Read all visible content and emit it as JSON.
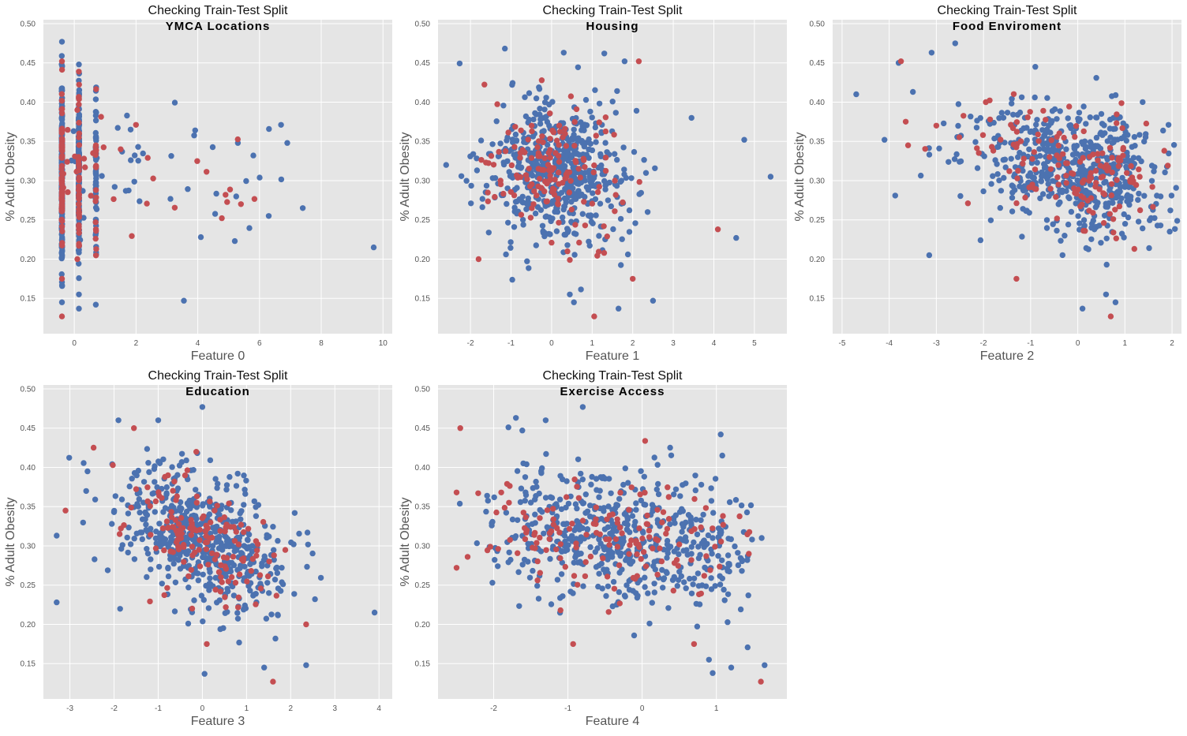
{
  "colors": {
    "train": "#4c72b0",
    "test": "#c44e52",
    "panel_bg": "#e5e5e5",
    "grid": "#ffffff"
  },
  "chart_data": [
    {
      "type": "scatter",
      "title": "Checking Train-Test Split",
      "subtitle": "YMCA Locations",
      "xlabel": "Feature 0",
      "ylabel": "% Adult Obesity",
      "xlim": [
        -1.0,
        10.3
      ],
      "ylim": [
        0.105,
        0.505
      ],
      "xticks": [
        0,
        2,
        4,
        6,
        8,
        10
      ],
      "yticks": [
        0.15,
        0.2,
        0.25,
        0.3,
        0.35,
        0.4,
        0.45,
        0.5
      ],
      "series": [
        {
          "name": "train",
          "color": "#4c72b0",
          "count": 520,
          "x_mode": "discrete",
          "x_levels": [
            -0.4,
            0.15,
            0.7
          ],
          "x_level_weights": [
            0.5,
            0.37,
            0.13
          ],
          "x_tail": [
            -0.4,
            7.0
          ],
          "tail_frac": 0.09,
          "y_mean": 0.305,
          "y_sd": 0.055,
          "extra_points": [
            [
              9.7,
              0.215
            ],
            [
              7.4,
              0.265
            ],
            [
              6.9,
              0.348
            ],
            [
              6.3,
              0.255
            ],
            [
              5.8,
              0.332
            ],
            [
              5.2,
              0.223
            ],
            [
              4.1,
              0.228
            ],
            [
              3.55,
              0.147
            ],
            [
              -0.4,
              0.477
            ],
            [
              0.15,
              0.448
            ],
            [
              -0.4,
              0.145
            ],
            [
              0.15,
              0.137
            ],
            [
              0.15,
              0.155
            ]
          ]
        },
        {
          "name": "test",
          "color": "#c44e52",
          "count": 165,
          "x_mode": "discrete",
          "x_levels": [
            -0.4,
            0.15,
            0.7
          ],
          "x_level_weights": [
            0.56,
            0.34,
            0.1
          ],
          "x_tail": [
            -0.4,
            6.0
          ],
          "tail_frac": 0.12,
          "y_mean": 0.305,
          "y_sd": 0.055,
          "extra_points": [
            [
              -0.4,
              0.452
            ],
            [
              -0.4,
              0.175
            ],
            [
              -0.4,
              0.127
            ],
            [
              0.1,
              0.39
            ],
            [
              0.1,
              0.2
            ],
            [
              2.0,
              0.371
            ],
            [
              5.4,
              0.27
            ],
            [
              4.9,
              0.282
            ]
          ]
        }
      ]
    },
    {
      "type": "scatter",
      "title": "Checking Train-Test Split",
      "subtitle": "Housing",
      "xlabel": "Feature 1",
      "ylabel": "% Adult Obesity",
      "xlim": [
        -2.8,
        5.8
      ],
      "ylim": [
        0.105,
        0.505
      ],
      "xticks": [
        -2,
        -1,
        0,
        1,
        2,
        3,
        4,
        5
      ],
      "yticks": [
        0.15,
        0.2,
        0.25,
        0.3,
        0.35,
        0.4,
        0.45,
        0.5
      ],
      "series": [
        {
          "name": "train",
          "color": "#4c72b0",
          "count": 560,
          "x_mode": "normal",
          "x_mean": 0.1,
          "x_sd": 0.85,
          "y_mean": 0.31,
          "y_sd": 0.046,
          "corr": -0.15,
          "extra_points": [
            [
              5.4,
              0.305
            ],
            [
              4.75,
              0.352
            ],
            [
              4.55,
              0.227
            ],
            [
              3.45,
              0.38
            ],
            [
              2.5,
              0.147
            ],
            [
              1.8,
              0.452
            ],
            [
              0.45,
              0.155
            ],
            [
              0.55,
              0.145
            ],
            [
              1.65,
              0.137
            ],
            [
              -2.6,
              0.32
            ],
            [
              0.3,
              0.463
            ],
            [
              1.3,
              0.462
            ]
          ]
        },
        {
          "name": "test",
          "color": "#c44e52",
          "count": 150,
          "x_mode": "normal",
          "x_mean": 0.0,
          "x_sd": 0.75,
          "y_mean": 0.31,
          "y_sd": 0.042,
          "corr": -0.15,
          "extra_points": [
            [
              2.15,
              0.452
            ],
            [
              1.05,
              0.127
            ],
            [
              2.0,
              0.175
            ],
            [
              -1.8,
              0.2
            ],
            [
              4.1,
              0.238
            ]
          ]
        }
      ]
    },
    {
      "type": "scatter",
      "title": "Checking Train-Test Split",
      "subtitle": "Food Enviroment",
      "xlabel": "Feature 2",
      "ylabel": "% Adult Obesity",
      "xlim": [
        -5.2,
        2.2
      ],
      "ylim": [
        0.105,
        0.505
      ],
      "xticks": [
        -5,
        -4,
        -3,
        -2,
        -1,
        0,
        1,
        2
      ],
      "yticks": [
        0.15,
        0.2,
        0.25,
        0.3,
        0.35,
        0.4,
        0.45,
        0.5
      ],
      "series": [
        {
          "name": "train",
          "color": "#4c72b0",
          "count": 560,
          "x_mode": "skew_left",
          "x_mean": 0.05,
          "x_sd": 0.9,
          "y_mean": 0.31,
          "y_sd": 0.046,
          "corr": -0.3,
          "extra_points": [
            [
              -4.7,
              0.41
            ],
            [
              -4.1,
              0.352
            ],
            [
              -3.8,
              0.45
            ],
            [
              -3.1,
              0.463
            ],
            [
              -2.6,
              0.475
            ],
            [
              -3.15,
              0.205
            ],
            [
              -0.9,
              0.445
            ],
            [
              0.6,
              0.155
            ],
            [
              0.8,
              0.145
            ],
            [
              0.1,
              0.137
            ],
            [
              1.95,
              0.235
            ]
          ]
        },
        {
          "name": "test",
          "color": "#c44e52",
          "count": 150,
          "x_mode": "skew_left",
          "x_mean": 0.1,
          "x_sd": 0.85,
          "y_mean": 0.31,
          "y_sd": 0.042,
          "corr": -0.3,
          "extra_points": [
            [
              -3.75,
              0.452
            ],
            [
              -3.65,
              0.375
            ],
            [
              -3.6,
              0.345
            ],
            [
              -3.0,
              0.37
            ],
            [
              -1.3,
              0.175
            ],
            [
              0.7,
              0.127
            ],
            [
              -1.95,
              0.4
            ]
          ]
        }
      ]
    },
    {
      "type": "scatter",
      "title": "Checking Train-Test Split",
      "subtitle": "Education",
      "xlabel": "Feature 3",
      "ylabel": "% Adult Obesity",
      "xlim": [
        -3.6,
        4.3
      ],
      "ylim": [
        0.105,
        0.505
      ],
      "xticks": [
        -3,
        -2,
        -1,
        0,
        1,
        2,
        3,
        4
      ],
      "yticks": [
        0.15,
        0.2,
        0.25,
        0.3,
        0.35,
        0.4,
        0.45,
        0.5
      ],
      "series": [
        {
          "name": "train",
          "color": "#4c72b0",
          "count": 560,
          "x_mode": "normal",
          "x_mean": 0.05,
          "x_sd": 0.95,
          "y_mean": 0.31,
          "y_sd": 0.046,
          "corr": -0.45,
          "extra_points": [
            [
              -3.3,
              0.313
            ],
            [
              -3.3,
              0.228
            ],
            [
              3.9,
              0.215
            ],
            [
              -2.6,
              0.395
            ],
            [
              0.0,
              0.477
            ],
            [
              0.05,
              0.137
            ],
            [
              1.4,
              0.145
            ],
            [
              2.35,
              0.148
            ],
            [
              -1.0,
              0.46
            ],
            [
              -1.9,
              0.46
            ],
            [
              2.55,
              0.232
            ]
          ]
        },
        {
          "name": "test",
          "color": "#c44e52",
          "count": 150,
          "x_mode": "normal",
          "x_mean": 0.0,
          "x_sd": 0.85,
          "y_mean": 0.31,
          "y_sd": 0.042,
          "corr": -0.45,
          "extra_points": [
            [
              -3.1,
              0.345
            ],
            [
              -1.55,
              0.45
            ],
            [
              1.6,
              0.127
            ],
            [
              0.1,
              0.175
            ],
            [
              2.35,
              0.2
            ]
          ]
        }
      ]
    },
    {
      "type": "scatter",
      "title": "Checking Train-Test Split",
      "subtitle": "Exercise Access",
      "xlabel": "Feature 4",
      "ylabel": "% Adult Obesity",
      "xlim": [
        -2.75,
        1.95
      ],
      "ylim": [
        0.105,
        0.505
      ],
      "xticks": [
        -2,
        -1,
        0,
        1
      ],
      "yticks": [
        0.15,
        0.2,
        0.25,
        0.3,
        0.35,
        0.4,
        0.45,
        0.5
      ],
      "series": [
        {
          "name": "train",
          "color": "#4c72b0",
          "count": 560,
          "x_mode": "uniformish",
          "x_min": -2.5,
          "x_max": 1.75,
          "y_mean": 0.31,
          "y_sd": 0.046,
          "corr": -0.35,
          "extra_points": [
            [
              -0.8,
              0.477
            ],
            [
              -1.7,
              0.463
            ],
            [
              -1.3,
              0.46
            ],
            [
              0.9,
              0.155
            ],
            [
              0.95,
              0.138
            ],
            [
              1.65,
              0.148
            ],
            [
              1.2,
              0.145
            ]
          ]
        },
        {
          "name": "test",
          "color": "#c44e52",
          "count": 150,
          "x_mode": "uniformish",
          "x_min": -2.5,
          "x_max": 1.7,
          "y_mean": 0.31,
          "y_sd": 0.042,
          "corr": -0.35,
          "extra_points": [
            [
              -2.45,
              0.45
            ],
            [
              -2.5,
              0.368
            ],
            [
              1.6,
              0.127
            ],
            [
              0.7,
              0.175
            ],
            [
              -1.1,
              0.218
            ],
            [
              -2.5,
              0.272
            ]
          ]
        }
      ]
    }
  ]
}
